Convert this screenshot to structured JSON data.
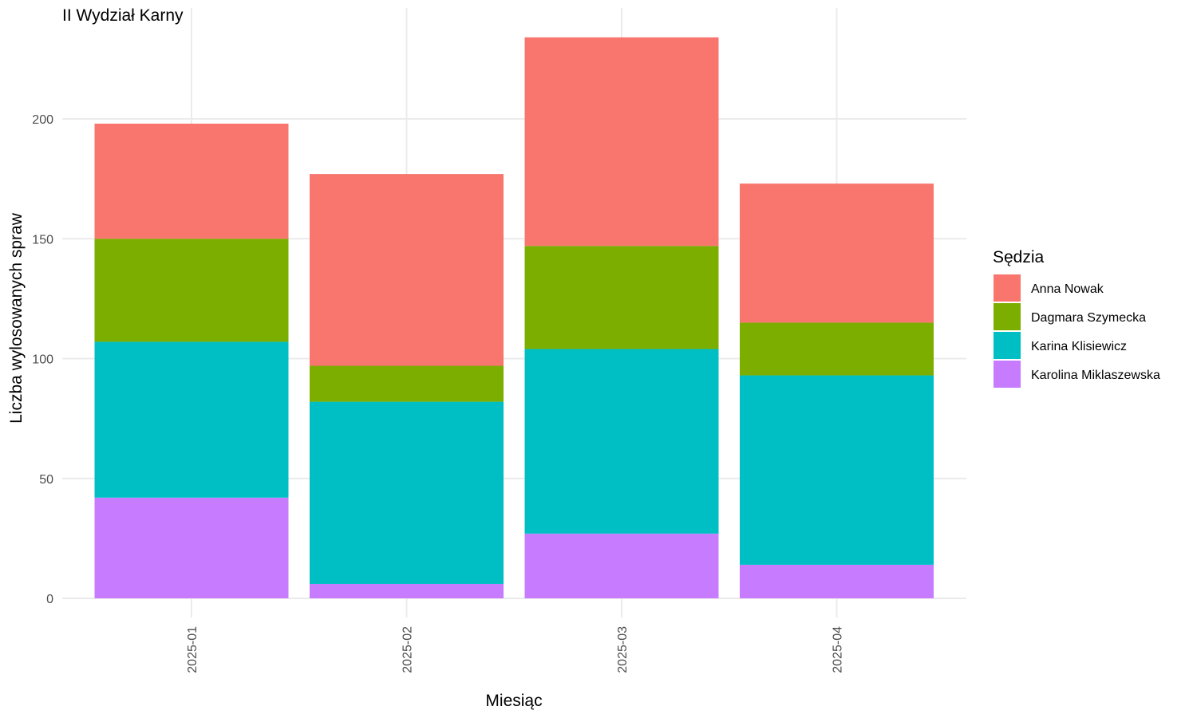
{
  "chart_data": {
    "type": "bar",
    "stacked": true,
    "title": "II Wydział Karny",
    "xlabel": "Miesiąc",
    "ylabel": "Liczba wylosowanych spraw",
    "categories": [
      "2025-01",
      "2025-02",
      "2025-03",
      "2025-04"
    ],
    "ylim": [
      0,
      245
    ],
    "yticks": [
      0,
      50,
      100,
      150,
      200
    ],
    "grid": true,
    "legend_title": "Sędzia",
    "legend_position": "right",
    "series": [
      {
        "name": "Karolina Miklaszewska",
        "color": "#C77CFF",
        "values": [
          42,
          6,
          27,
          14
        ]
      },
      {
        "name": "Karina Klisiewicz",
        "color": "#00BFC4",
        "values": [
          65,
          76,
          77,
          79
        ]
      },
      {
        "name": "Dagmara Szymecka",
        "color": "#7CAE00",
        "values": [
          43,
          15,
          43,
          22
        ]
      },
      {
        "name": "Anna Nowak",
        "color": "#F8766D",
        "values": [
          48,
          80,
          87,
          58
        ]
      }
    ],
    "legend_order": [
      "Anna Nowak",
      "Dagmara Szymecka",
      "Karina Klisiewicz",
      "Karolina Miklaszewska"
    ]
  }
}
